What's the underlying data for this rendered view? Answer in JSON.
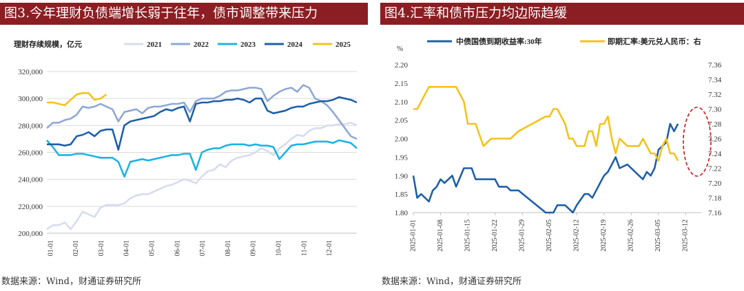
{
  "left": {
    "title": "图3.今年理财负债端增长弱于往年，债市调整带来压力",
    "source": "数据来源：Wind，财通证券研究所"
  },
  "right": {
    "title": "图4.汇率和债市压力均边际趋缓",
    "source": "数据来源：Wind，财通证券研究所"
  },
  "chart_data": [
    {
      "type": "line",
      "ylabel": "理财存续规模，亿元",
      "ylim": [
        200000,
        320000
      ],
      "yticks": [
        "200,000",
        "220,000",
        "240,000",
        "260,000",
        "280,000",
        "300,000",
        "320,000"
      ],
      "yticks_values": [
        200000,
        220000,
        240000,
        260000,
        280000,
        300000,
        320000
      ],
      "xticks": [
        "01-01",
        "02-01",
        "03-01",
        "04-01",
        "05-01",
        "06-01",
        "07-01",
        "08-01",
        "09-01",
        "10-01",
        "11-01",
        "12-01"
      ],
      "x_unit": "week of year (0-52)",
      "grid": true,
      "legend_position": "top",
      "series": [
        {
          "name": "2021",
          "color": "#d6dcef",
          "x_max": 52,
          "values": [
            203000,
            206000,
            206000,
            208000,
            203000,
            209000,
            216000,
            214000,
            212000,
            219000,
            221000,
            221000,
            221000,
            222000,
            226000,
            228000,
            229000,
            229000,
            231000,
            233000,
            235000,
            236000,
            238000,
            240000,
            239000,
            237000,
            242000,
            246000,
            247000,
            251000,
            249000,
            254000,
            256000,
            257000,
            258000,
            260000,
            263000,
            261000,
            258000,
            263000,
            266000,
            270000,
            273000,
            272000,
            276000,
            278000,
            278000,
            280000,
            280000,
            281000,
            281000,
            282000,
            280000
          ]
        },
        {
          "name": "2022",
          "color": "#8fa8d4",
          "x_max": 52,
          "values": [
            278000,
            282000,
            282000,
            284000,
            285000,
            288000,
            294000,
            293000,
            294000,
            296000,
            294000,
            292000,
            283000,
            290000,
            291000,
            292000,
            289000,
            293000,
            294000,
            294000,
            295000,
            296000,
            296000,
            297000,
            290000,
            298000,
            300000,
            300000,
            300000,
            302000,
            305000,
            306000,
            306000,
            307000,
            308000,
            308000,
            307000,
            298000,
            302000,
            305000,
            307000,
            308000,
            305000,
            310000,
            308000,
            300000,
            298000,
            295000,
            290000,
            284000,
            278000,
            272000,
            270000
          ]
        },
        {
          "name": "2023",
          "color": "#1cb3e6",
          "x_max": 52,
          "values": [
            269000,
            264000,
            258000,
            258000,
            258000,
            259000,
            259000,
            258000,
            257000,
            256000,
            256000,
            256000,
            253000,
            242000,
            253000,
            254000,
            255000,
            254000,
            255000,
            256000,
            257000,
            258000,
            258000,
            259000,
            259000,
            247000,
            260000,
            262000,
            263000,
            263000,
            265000,
            266000,
            266000,
            266000,
            265000,
            266000,
            265000,
            265000,
            264000,
            255000,
            260000,
            265000,
            266000,
            266000,
            267000,
            268000,
            268000,
            268000,
            267000,
            269000,
            268000,
            267000,
            263000
          ]
        },
        {
          "name": "2024",
          "color": "#1e5fa8",
          "x_max": 52,
          "values": [
            266000,
            266000,
            266000,
            265000,
            266000,
            272000,
            273000,
            275000,
            272000,
            276000,
            277000,
            277000,
            262000,
            280000,
            283000,
            284000,
            285000,
            286000,
            287000,
            290000,
            292000,
            291000,
            293000,
            294000,
            283000,
            296000,
            297000,
            297000,
            298000,
            298000,
            299000,
            299000,
            300000,
            299000,
            297000,
            300000,
            300000,
            291000,
            289000,
            290000,
            291000,
            293000,
            294000,
            294000,
            296000,
            297000,
            298000,
            298000,
            299000,
            301000,
            300000,
            299000,
            297000
          ]
        },
        {
          "name": "2025",
          "color": "#f5c21b",
          "x_max": 10,
          "values": [
            297000,
            297000,
            296000,
            295000,
            299000,
            303000,
            304000,
            304000,
            299000,
            300000,
            303000
          ]
        }
      ]
    },
    {
      "type": "line",
      "ylabel": "%",
      "ylim": [
        1.8,
        2.2
      ],
      "yticks": [
        "1.80",
        "1.85",
        "1.90",
        "1.95",
        "2.00",
        "2.05",
        "2.10",
        "2.15",
        "2.20"
      ],
      "yticks_values": [
        1.8,
        1.85,
        1.9,
        1.95,
        2.0,
        2.05,
        2.1,
        2.15,
        2.2
      ],
      "y2lim": [
        7.16,
        7.36
      ],
      "y2ticks": [
        "7.16",
        "7.18",
        "7.20",
        "7.22",
        "7.24",
        "7.26",
        "7.28",
        "7.30",
        "7.32",
        "7.34",
        "7.36"
      ],
      "y2ticks_values": [
        7.16,
        7.18,
        7.2,
        7.22,
        7.24,
        7.26,
        7.28,
        7.3,
        7.32,
        7.34,
        7.36
      ],
      "xticks": [
        "2025-01-01",
        "2025-01-08",
        "2025-01-15",
        "2025-01-22",
        "2025-01-29",
        "2025-02-05",
        "2025-02-12",
        "2025-02-19",
        "2025-02-26",
        "2025-03-05",
        "2025-03-12"
      ],
      "x_unit": "day offset from 2025-01-01",
      "x_max": 74,
      "grid": false,
      "legend_position": "top",
      "series": [
        {
          "name": "中债国债到期收益率:30年",
          "color": "#1e5fa8",
          "axis": "left",
          "x": [
            0,
            1,
            2,
            4,
            5,
            6,
            7,
            8,
            10,
            11,
            13,
            14,
            15,
            16,
            18,
            20,
            21,
            22,
            23,
            24,
            25,
            27,
            34,
            35,
            36,
            37,
            39,
            40,
            41,
            42,
            44,
            45,
            46,
            47,
            48,
            49,
            50,
            51,
            52,
            53,
            55,
            57,
            58,
            59,
            60,
            61,
            62,
            63,
            64,
            65,
            66,
            67,
            68
          ],
          "values": [
            1.9,
            1.84,
            1.85,
            1.83,
            1.86,
            1.87,
            1.89,
            1.88,
            1.9,
            1.87,
            1.92,
            1.92,
            1.92,
            1.89,
            1.89,
            1.89,
            1.89,
            1.87,
            1.87,
            1.87,
            1.86,
            1.86,
            1.8,
            1.8,
            1.8,
            1.82,
            1.82,
            1.81,
            1.8,
            1.82,
            1.85,
            1.85,
            1.84,
            1.86,
            1.88,
            1.9,
            1.91,
            1.93,
            1.95,
            1.92,
            1.93,
            1.91,
            1.9,
            1.89,
            1.91,
            1.9,
            1.92,
            1.97,
            1.98,
            1.99,
            2.04,
            2.02,
            2.04
          ]
        },
        {
          "name": "即期汇率:美元兑人民币：右",
          "color": "#f5c21b",
          "axis": "right",
          "x": [
            0,
            1,
            2,
            4,
            5,
            6,
            7,
            8,
            10,
            11,
            13,
            14,
            15,
            16,
            18,
            20,
            21,
            22,
            23,
            24,
            25,
            27,
            34,
            35,
            36,
            37,
            39,
            40,
            41,
            42,
            44,
            45,
            46,
            47,
            48,
            49,
            50,
            51,
            52,
            53,
            55,
            57,
            58,
            59,
            60,
            61,
            62,
            63,
            64,
            65,
            66,
            67,
            68
          ],
          "values": [
            7.3,
            7.3,
            7.31,
            7.33,
            7.33,
            7.33,
            7.33,
            7.33,
            7.33,
            7.33,
            7.31,
            7.28,
            7.28,
            7.28,
            7.25,
            7.26,
            7.26,
            7.26,
            7.26,
            7.26,
            7.26,
            7.27,
            7.29,
            7.29,
            7.3,
            7.3,
            7.28,
            7.26,
            7.26,
            7.25,
            7.25,
            7.27,
            7.27,
            7.25,
            7.28,
            7.28,
            7.29,
            7.26,
            7.24,
            7.26,
            7.25,
            7.25,
            7.25,
            7.26,
            7.25,
            7.24,
            7.24,
            7.23,
            7.25,
            7.26,
            7.24,
            7.24,
            7.23
          ]
        }
      ]
    }
  ]
}
